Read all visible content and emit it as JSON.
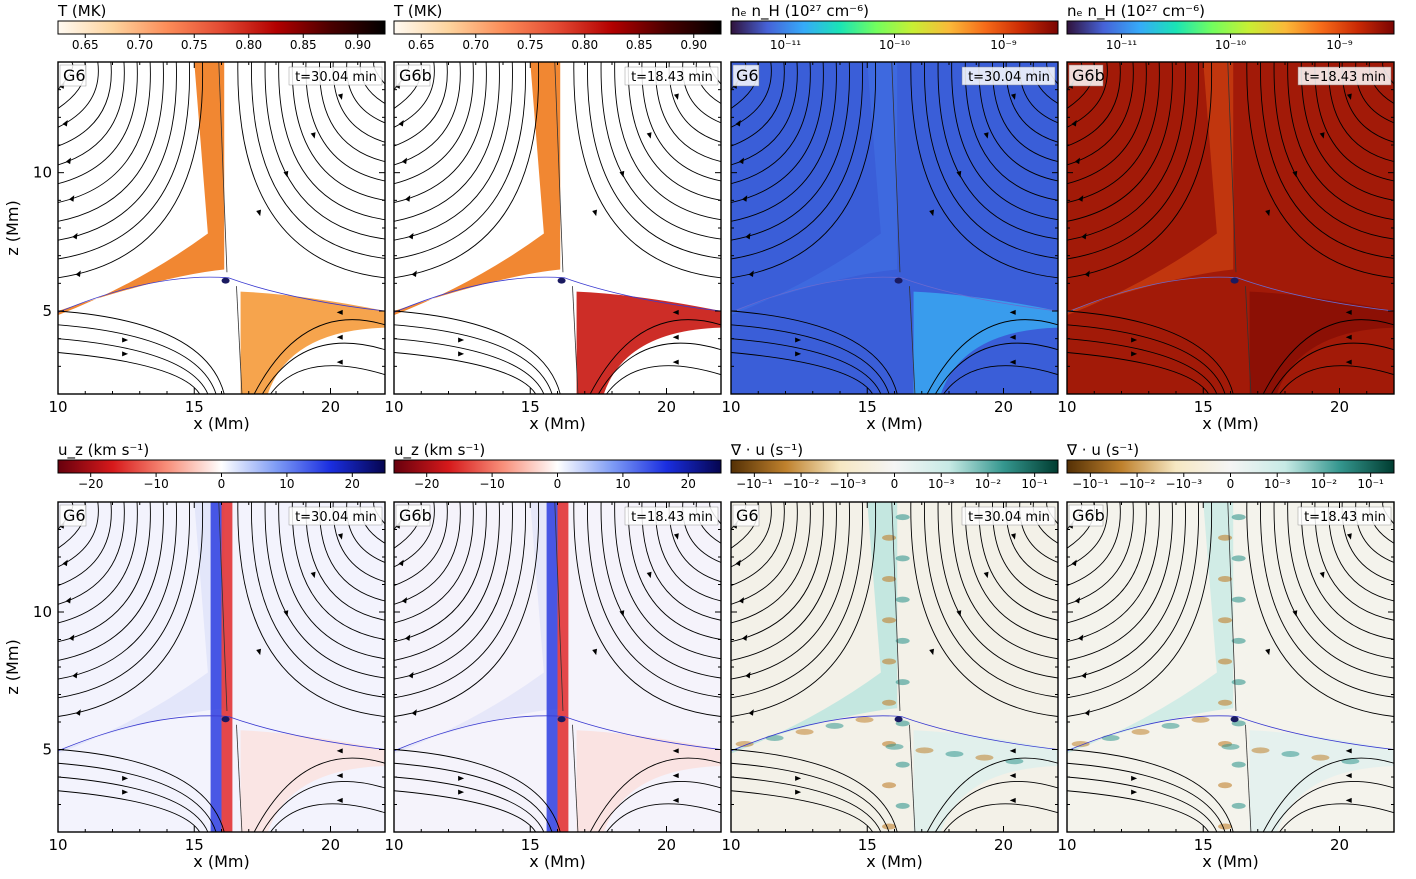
{
  "figure": {
    "panels_per_row": 4,
    "axis_labels": {
      "x": "x (Mm)",
      "z": "z (Mm)"
    },
    "x_ticks": [
      "10",
      "15",
      "20"
    ],
    "z_ticks": [
      "5",
      "10"
    ],
    "x_range": [
      10,
      22
    ],
    "z_range": [
      2,
      14
    ],
    "rows": [
      {
        "panels": [
          {
            "label": "G6",
            "time": "t=30.04 min",
            "colorbar": {
              "title": "T (MK)",
              "ticks": [
                "0.65",
                "0.70",
                "0.75",
                "0.80",
                "0.85",
                "0.90"
              ],
              "colors": [
                "#fffaf2",
                "#fdd49e",
                "#fc8d59",
                "#e34a33",
                "#b30000",
                "#4a0000",
                "#000000"
              ]
            },
            "field": "temperature",
            "style": {
              "bg": "#ffffff",
              "hot": "#f07a1c",
              "lower": "#f59a3a"
            }
          },
          {
            "label": "G6b",
            "time": "t=18.43 min",
            "colorbar": {
              "title": "T (MK)",
              "ticks": [
                "0.65",
                "0.70",
                "0.75",
                "0.80",
                "0.85",
                "0.90"
              ],
              "colors": [
                "#fffaf2",
                "#fdd49e",
                "#fc8d59",
                "#e34a33",
                "#b30000",
                "#4a0000",
                "#000000"
              ]
            },
            "field": "temperature",
            "style": {
              "bg": "#ffffff",
              "hot": "#f07a1c",
              "lower": "#c8160f"
            }
          },
          {
            "label": "G6",
            "time": "t=30.04 min",
            "colorbar": {
              "title": "nₑ n_H (10²⁷ cm⁻⁶)",
              "ticks": [
                "10⁻¹¹",
                "10⁻¹⁰",
                "10⁻⁹"
              ],
              "colors": [
                "#30123b",
                "#4662d7",
                "#36aaf9",
                "#1ae4b6",
                "#72fe5e",
                "#c8ef34",
                "#faba39",
                "#f66b19",
                "#ca2a04",
                "#7a0403"
              ]
            },
            "field": "density",
            "style": {
              "bg": "#3a5ed8",
              "hot": "#3f6ae0",
              "lower": "#3aa3ef"
            }
          },
          {
            "label": "G6b",
            "time": "t=18.43 min",
            "colorbar": {
              "title": "nₑ n_H (10²⁷ cm⁻⁶)",
              "ticks": [
                "10⁻¹¹",
                "10⁻¹⁰",
                "10⁻⁹"
              ],
              "colors": [
                "#30123b",
                "#4662d7",
                "#36aaf9",
                "#1ae4b6",
                "#72fe5e",
                "#c8ef34",
                "#faba39",
                "#f66b19",
                "#ca2a04",
                "#7a0403"
              ]
            },
            "field": "density",
            "style": {
              "bg": "#a21a08",
              "hot": "#c43a10",
              "lower": "#8a1006"
            }
          }
        ]
      },
      {
        "panels": [
          {
            "label": "G6",
            "time": "t=30.04 min",
            "colorbar": {
              "title": "u_z (km s⁻¹)",
              "ticks": [
                "−20",
                "−10",
                "0",
                "10",
                "20"
              ],
              "colors": [
                "#67000d",
                "#d6191b",
                "#f88f7a",
                "#ffffff",
                "#7f9cf5",
                "#1a2ee0",
                "#05054f"
              ]
            },
            "field": "velocity",
            "style": {
              "bg": "#f3f3fd",
              "hot": "#e1e4f9",
              "lower": "#fbe3e1"
            }
          },
          {
            "label": "G6b",
            "time": "t=18.43 min",
            "colorbar": {
              "title": "u_z (km s⁻¹)",
              "ticks": [
                "−20",
                "−10",
                "0",
                "10",
                "20"
              ],
              "colors": [
                "#67000d",
                "#d6191b",
                "#f88f7a",
                "#ffffff",
                "#7f9cf5",
                "#1a2ee0",
                "#05054f"
              ]
            },
            "field": "velocity",
            "style": {
              "bg": "#f5f3fb",
              "hot": "#e4e6f8",
              "lower": "#fbe1df"
            }
          },
          {
            "label": "G6",
            "time": "t=30.04 min",
            "colorbar": {
              "title": "∇ · u (s⁻¹)",
              "ticks": [
                "−10⁻¹",
                "−10⁻²",
                "−10⁻³",
                "0",
                "10⁻³",
                "10⁻²",
                "10⁻¹"
              ],
              "colors": [
                "#543005",
                "#bf812d",
                "#f6e8c3",
                "#f5f5f5",
                "#c7eae5",
                "#35978f",
                "#003c30"
              ]
            },
            "field": "divergence",
            "style": {
              "bg": "#f3f1e8",
              "hot": "#bfe6df",
              "lower": "#dff0ec"
            }
          },
          {
            "label": "G6b",
            "time": "t=18.43 min",
            "colorbar": {
              "title": "∇ · u (s⁻¹)",
              "ticks": [
                "−10⁻¹",
                "−10⁻²",
                "−10⁻³",
                "0",
                "10⁻³",
                "10⁻²",
                "10⁻¹"
              ],
              "colors": [
                "#543005",
                "#bf812d",
                "#f6e8c3",
                "#f5f5f5",
                "#c7eae5",
                "#35978f",
                "#003c30"
              ]
            },
            "field": "divergence",
            "style": {
              "bg": "#f4f3ec",
              "hot": "#cdebe5",
              "lower": "#e3f1ee"
            }
          }
        ]
      }
    ]
  }
}
